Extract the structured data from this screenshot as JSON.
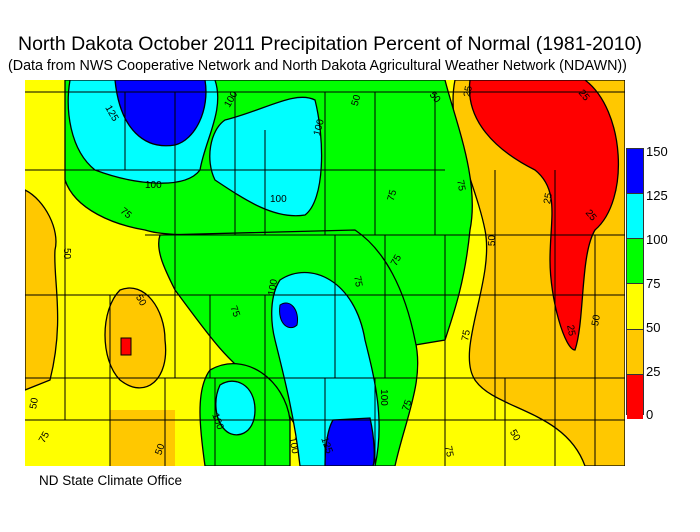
{
  "title": "North Dakota October 2011 Precipitation Percent of Normal (1981-2010)",
  "subtitle": "(Data from NWS Cooperative Network and North Dakota Agricultural Weather Network (NDAWN))",
  "footer": "ND State Climate Office",
  "legend": {
    "ticks": [
      "150",
      "125",
      "100",
      "75",
      "50",
      "25",
      "0"
    ],
    "bins": [
      {
        "range": "125-150",
        "color": "#0000FF"
      },
      {
        "range": "100-125",
        "color": "#00FFFF"
      },
      {
        "range": "75-100",
        "color": "#00FF00"
      },
      {
        "range": "50-75",
        "color": "#FFFF00"
      },
      {
        "range": "25-50",
        "color": "#FFC800"
      },
      {
        "range": "0-25",
        "color": "#FF0000"
      }
    ]
  },
  "contour_labels": [
    "125",
    "100",
    "100",
    "100",
    "100",
    "75",
    "50",
    "50",
    "25",
    "25",
    "75",
    "75",
    "25",
    "25",
    "50",
    "75",
    "75",
    "100",
    "75",
    "50",
    "25",
    "50",
    "50",
    "75",
    "100",
    "100",
    "100",
    "125",
    "75",
    "50",
    "75",
    "50",
    "50",
    "75"
  ]
}
